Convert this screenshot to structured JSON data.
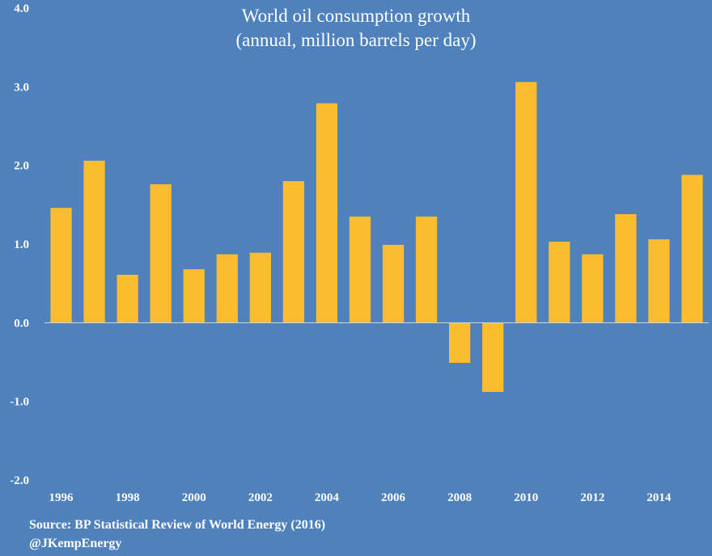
{
  "colors": {
    "background": "#4f81bd",
    "bar": "#fbbc2d",
    "text": "#ffffff",
    "axis": "#d9d9d9"
  },
  "source": "Source: BP Statistical Review of World Energy (2016)",
  "handle": "@JKempEnergy",
  "chart_data": {
    "type": "bar",
    "title": "World oil consumption growth",
    "subtitle": "(annual, million barrels per day)",
    "xlabel": "",
    "ylabel": "",
    "ylim": [
      -2.0,
      4.0
    ],
    "yticks": [
      "4.0",
      "3.0",
      "2.0",
      "1.0",
      "0.0",
      "-1.0",
      "-2.0"
    ],
    "ytick_values": [
      4,
      3,
      2,
      1,
      0,
      -1,
      -2
    ],
    "categories": [
      "1996",
      "1997",
      "1998",
      "1999",
      "2000",
      "2001",
      "2002",
      "2003",
      "2004",
      "2005",
      "2006",
      "2007",
      "2008",
      "2009",
      "2010",
      "2011",
      "2012",
      "2013",
      "2014",
      "2015"
    ],
    "xtick_labels": [
      "1996",
      "",
      "1998",
      "",
      "2000",
      "",
      "2002",
      "",
      "2004",
      "",
      "2006",
      "",
      "2008",
      "",
      "2010",
      "",
      "2012",
      "",
      "2014",
      ""
    ],
    "values": [
      1.46,
      2.06,
      0.61,
      1.76,
      0.68,
      0.87,
      0.89,
      1.8,
      2.79,
      1.35,
      0.99,
      1.35,
      -0.51,
      -0.88,
      3.06,
      1.03,
      0.87,
      1.38,
      1.06,
      1.88
    ],
    "grid": false,
    "legend": "none"
  }
}
